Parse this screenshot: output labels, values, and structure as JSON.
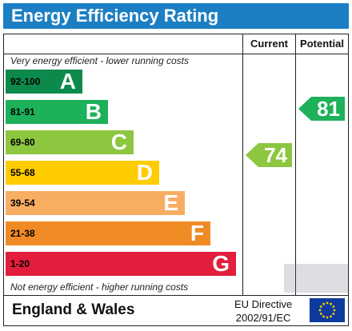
{
  "title": "Energy Efficiency Rating",
  "columns": {
    "current": "Current",
    "potential": "Potential"
  },
  "top_note": "Very energy efficient - lower running costs",
  "bottom_note": "Not energy efficient - higher running costs",
  "bands": [
    {
      "range": "92-100",
      "letter": "A",
      "color": "#0c8a4b",
      "range_color": "#000000"
    },
    {
      "range": "81-91",
      "letter": "B",
      "color": "#1db15a",
      "range_color": "#000000"
    },
    {
      "range": "69-80",
      "letter": "C",
      "color": "#8dc63f",
      "range_color": "#000000"
    },
    {
      "range": "55-68",
      "letter": "D",
      "color": "#ffcc00",
      "range_color": "#000000"
    },
    {
      "range": "39-54",
      "letter": "E",
      "color": "#f7ae63",
      "range_color": "#000000"
    },
    {
      "range": "21-38",
      "letter": "F",
      "color": "#f08a24",
      "range_color": "#000000"
    },
    {
      "range": "1-20",
      "letter": "G",
      "color": "#e31d3c",
      "range_color": "#000000"
    }
  ],
  "current": {
    "value": "74",
    "color": "#8dc63f"
  },
  "potential": {
    "value": "81",
    "color": "#1db15a"
  },
  "footer": {
    "country": "England & Wales",
    "directive_line1": "EU Directive",
    "directive_line2": "2002/91/EC"
  }
}
